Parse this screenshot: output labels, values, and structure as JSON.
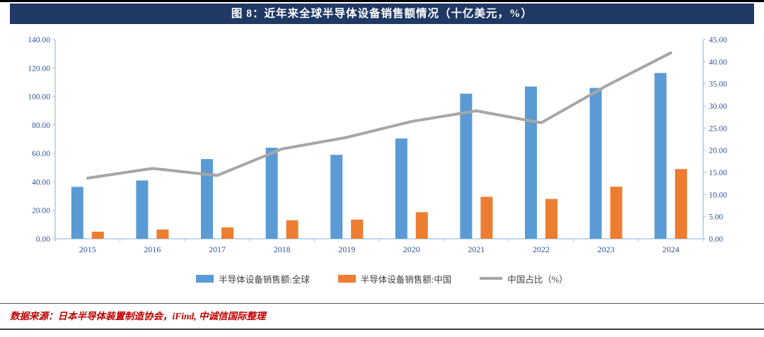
{
  "page": {
    "title": "图 8：近年来全球半导体设备销售额情况（十亿美元，%）",
    "source_note": "数据来源：日本半导体装置制造协会，iFind, 中诚信国际整理"
  },
  "chart_data": {
    "type": "bar",
    "subtype": "combo-bar-line-dual-axis",
    "title": "近年来全球半导体设备销售额情况（十亿美元，%）",
    "categories": [
      "2015",
      "2016",
      "2017",
      "2018",
      "2019",
      "2020",
      "2021",
      "2022",
      "2023",
      "2024"
    ],
    "series": [
      {
        "name": "半导体设备销售额:全球",
        "type": "bar",
        "axis": "left",
        "color": "#5B9BD5",
        "values": [
          36.5,
          41.0,
          56.0,
          64.0,
          59.0,
          70.5,
          102.0,
          107.0,
          106.0,
          116.5
        ]
      },
      {
        "name": "半导体设备销售额:中国",
        "type": "bar",
        "axis": "left",
        "color": "#ED7D31",
        "values": [
          5.0,
          6.5,
          8.0,
          13.0,
          13.5,
          18.7,
          29.5,
          28.0,
          36.6,
          49.0
        ]
      },
      {
        "name": "中国占比（%）",
        "type": "line",
        "axis": "right",
        "color": "#A6A6A6",
        "values": [
          13.7,
          15.9,
          14.3,
          20.3,
          22.9,
          26.5,
          28.9,
          26.2,
          34.5,
          42.0
        ]
      }
    ],
    "left_axis": {
      "min": 0,
      "max": 140,
      "step": 20,
      "tick_labels": [
        "0.00",
        "20.00",
        "40.00",
        "60.00",
        "80.00",
        "100.00",
        "120.00",
        "140.00"
      ]
    },
    "right_axis": {
      "min": 0,
      "max": 45,
      "step": 5,
      "tick_labels": [
        "0.00",
        "5.00",
        "10.00",
        "15.00",
        "20.00",
        "25.00",
        "30.00",
        "35.00",
        "40.00",
        "45.00"
      ]
    },
    "legend_position": "bottom",
    "grid": false,
    "colors": {
      "bar_global": "#5B9BD5",
      "bar_china": "#ED7D31",
      "line_share": "#A6A6A6",
      "axis_line": "#9DC3E6",
      "tick_label": "#2F5597",
      "title_bar_bg": "#1F3864",
      "title_text": "#FFFFFF",
      "source_text": "#C00000"
    }
  }
}
